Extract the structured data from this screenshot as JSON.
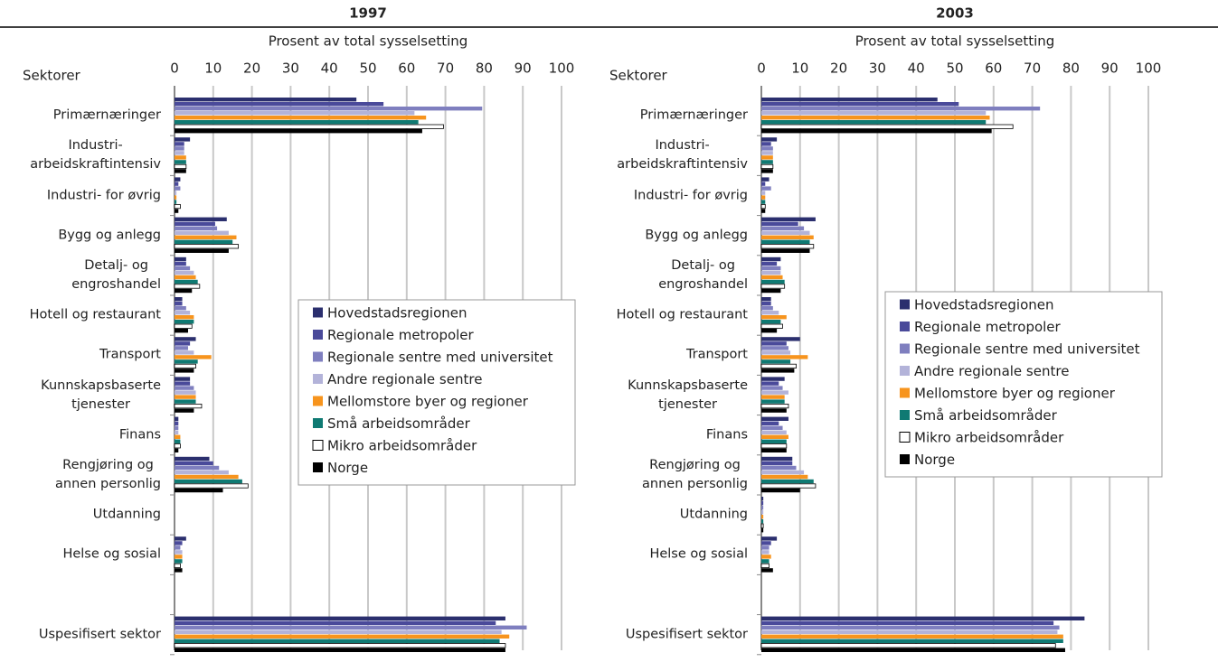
{
  "chart_data": [
    {
      "type": "bar",
      "orientation": "horizontal",
      "title": "1997",
      "xlabel": "Prosent av total sysselsetting",
      "ylabel": "Sektorer",
      "categories": [
        "Primærnæringer",
        "Industri-\narbeidskraftintensiv",
        "Industri- for øvrig",
        "Bygg og anlegg",
        "Detalj- og\nengroshandel",
        "Hotell og restaurant",
        "Transport",
        "Kunnskapsbaserte\ntjenester",
        "Finans",
        "Rengjøring og\nannen personlig",
        "Utdanning",
        "Helse og sosial",
        null,
        "Uspesifisert sektor"
      ],
      "xlim": [
        0,
        100
      ],
      "xticks": [
        0,
        10,
        20,
        30,
        40,
        50,
        60,
        70,
        80,
        90,
        100
      ],
      "grid": true,
      "legend": "center",
      "series": [
        {
          "name": "Hovedstadsregionen",
          "color": "#2b2f6e",
          "values": [
            47,
            4,
            1.5,
            13.5,
            3,
            2,
            5.5,
            4,
            1,
            9,
            0,
            3,
            null,
            85.5
          ]
        },
        {
          "name": "Regionale metropoler",
          "color": "#4a4a9a",
          "values": [
            54,
            2.5,
            1,
            10.5,
            3,
            2,
            4,
            4,
            1,
            10,
            0,
            2,
            null,
            83
          ]
        },
        {
          "name": "Regionale sentre med universitet",
          "color": "#7f7fbf",
          "values": [
            79.5,
            2.5,
            1.5,
            11,
            4,
            3,
            3.5,
            5,
            1,
            11.5,
            0,
            1.5,
            null,
            91
          ]
        },
        {
          "name": "Andre regionale sentre",
          "color": "#b3b3d9",
          "values": [
            62,
            2.5,
            0.5,
            14,
            5,
            4,
            5,
            5.5,
            1,
            14,
            0,
            2,
            null,
            84.5
          ]
        },
        {
          "name": "Mellomstore byer og regioner",
          "color": "#f7941d",
          "values": [
            65,
            3,
            0.5,
            16,
            5.5,
            5,
            9.5,
            5.5,
            1.5,
            16.5,
            0,
            2,
            null,
            86.5
          ]
        },
        {
          "name": "Små arbeidsområder",
          "color": "#0f7a73",
          "values": [
            63,
            3,
            0.5,
            15,
            6,
            5,
            6,
            5.5,
            1.5,
            17.5,
            0,
            2,
            null,
            84
          ]
        },
        {
          "name": "Mikro arbeidsområder",
          "color": "#ffffff",
          "values": [
            69.5,
            3,
            1.5,
            16.5,
            6.5,
            4.5,
            5.5,
            7,
            1.5,
            19,
            0,
            1.5,
            null,
            85.5
          ]
        },
        {
          "name": "Norge",
          "color": "#000000",
          "values": [
            64,
            3,
            1,
            14,
            4.5,
            3.5,
            5,
            5,
            1,
            12.5,
            0,
            2,
            null,
            85.5
          ]
        }
      ]
    },
    {
      "type": "bar",
      "orientation": "horizontal",
      "title": "2003",
      "xlabel": "Prosent av total sysselsetting",
      "ylabel": "Sektorer",
      "categories": [
        "Primærnæringer",
        "Industri-\narbeidskraftintensiv",
        "Industri- for øvrig",
        "Bygg og anlegg",
        "Detalj- og\nengroshandel",
        "Hotell og restaurant",
        "Transport",
        "Kunnskapsbaserte\ntjenester",
        "Finans",
        "Rengjøring og\nannen personlig",
        "Utdanning",
        "Helse og sosial",
        null,
        "Uspesifisert sektor"
      ],
      "xlim": [
        0,
        100
      ],
      "xticks": [
        0,
        10,
        20,
        30,
        40,
        50,
        60,
        70,
        80,
        90,
        100
      ],
      "grid": true,
      "legend": "center",
      "series": [
        {
          "name": "Hovedstadsregionen",
          "color": "#2b2f6e",
          "values": [
            45.5,
            4,
            2,
            14,
            5,
            2.5,
            10,
            6,
            7,
            8,
            0.5,
            4,
            null,
            83.5
          ]
        },
        {
          "name": "Regionale metropoler",
          "color": "#4a4a9a",
          "values": [
            51,
            2.5,
            1,
            9.5,
            4,
            2.5,
            6.5,
            4.5,
            4.5,
            8,
            0.5,
            2.5,
            null,
            75.5
          ]
        },
        {
          "name": "Regionale sentre med universitet",
          "color": "#7f7fbf",
          "values": [
            72,
            3,
            2.5,
            11,
            5,
            3,
            7,
            5.5,
            5.5,
            9,
            0.5,
            2,
            null,
            77
          ]
        },
        {
          "name": "Andre regionale sentre",
          "color": "#b3b3d9",
          "values": [
            58,
            3,
            1,
            12.5,
            5,
            4.5,
            7.5,
            7,
            6.5,
            11,
            0.5,
            2,
            null,
            76.5
          ]
        },
        {
          "name": "Mellomstore byer og regioner",
          "color": "#f7941d",
          "values": [
            59,
            3,
            1,
            13.5,
            5.5,
            6.5,
            12,
            6,
            7,
            12,
            0.5,
            2.5,
            null,
            78
          ]
        },
        {
          "name": "Små arbeidsområder",
          "color": "#0f7a73",
          "values": [
            58,
            3,
            1,
            12.5,
            6,
            5,
            7.5,
            6,
            6.5,
            13.5,
            0.5,
            2,
            null,
            78
          ]
        },
        {
          "name": "Mikro arbeidsområder",
          "color": "#ffffff",
          "values": [
            65,
            3,
            1,
            13.5,
            6,
            5.5,
            9,
            7,
            6.5,
            14,
            0.5,
            2,
            null,
            76
          ]
        },
        {
          "name": "Norge",
          "color": "#000000",
          "values": [
            59.5,
            3,
            1,
            12.5,
            5,
            4,
            8.5,
            6.5,
            6.5,
            10,
            0.5,
            3,
            null,
            78.5
          ]
        }
      ]
    }
  ]
}
